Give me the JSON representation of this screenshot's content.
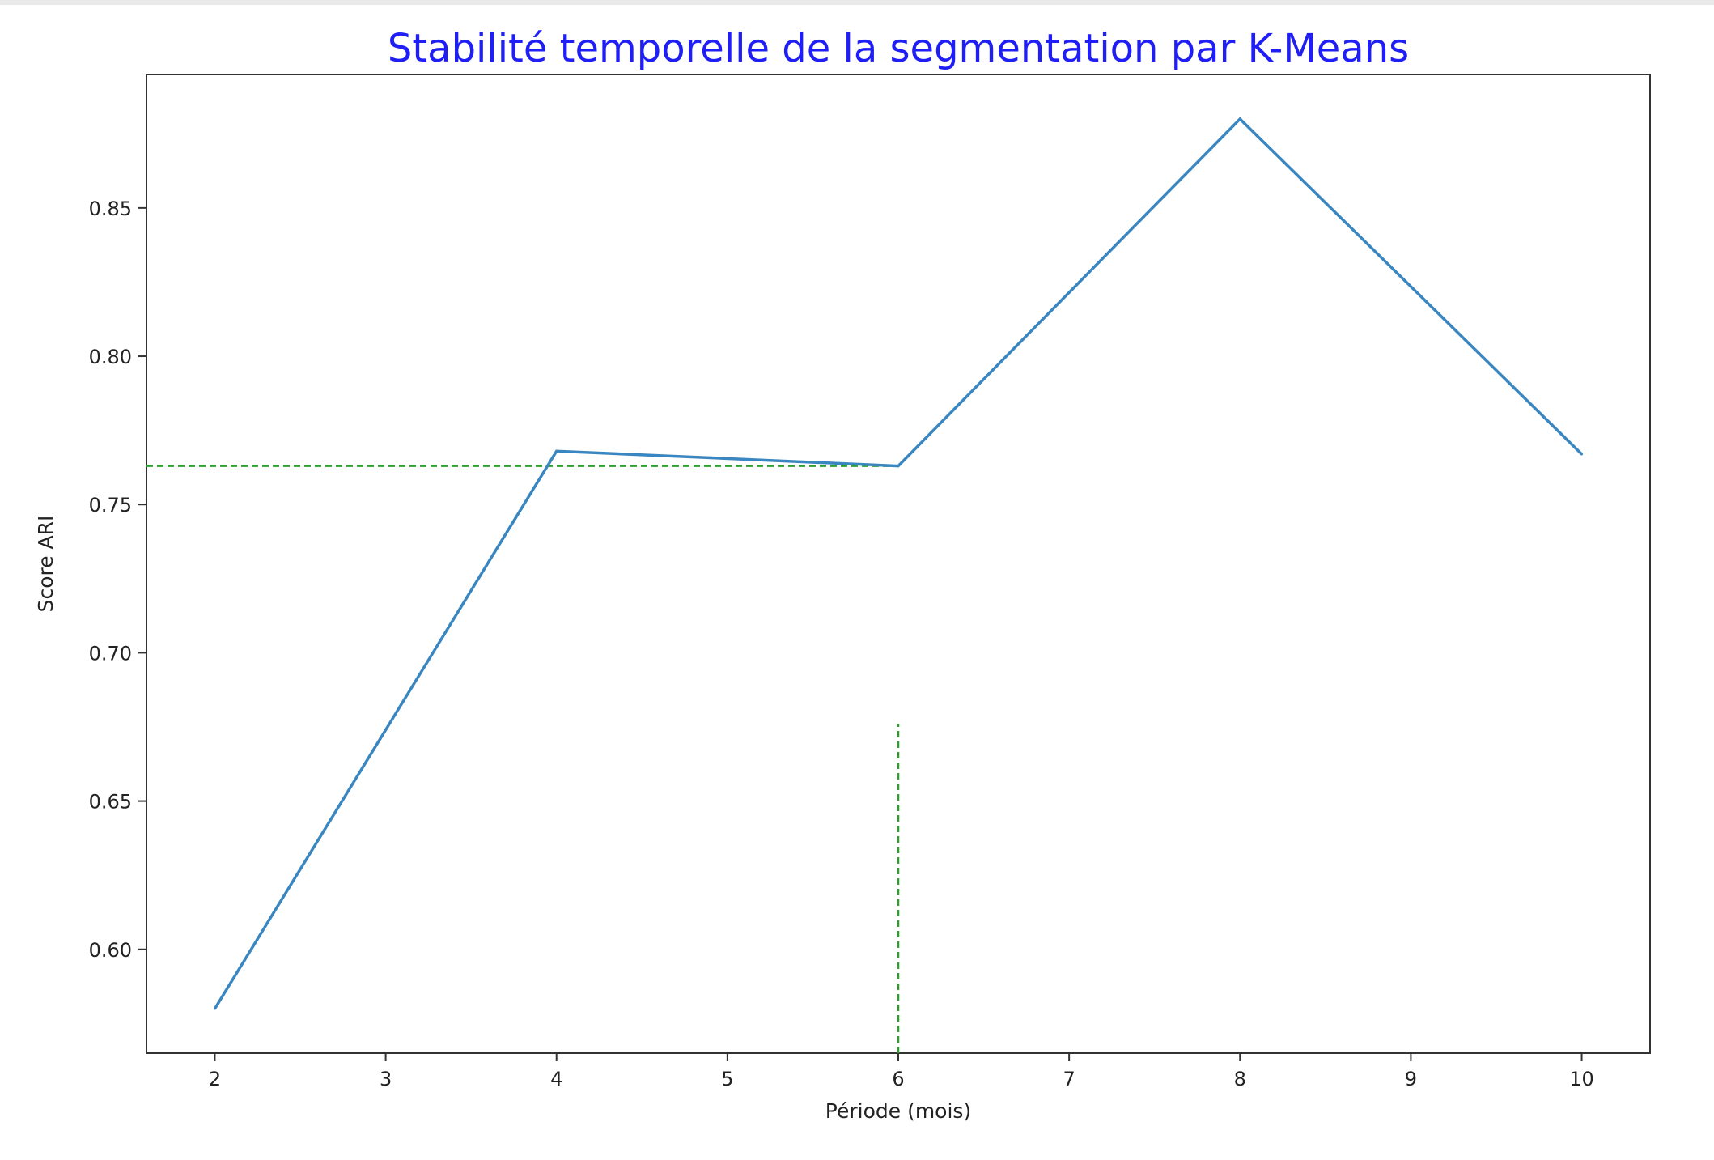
{
  "chart_data": {
    "type": "line",
    "title": "Stabilité temporelle de la segmentation par K-Means",
    "xlabel": "Période (mois)",
    "ylabel": "Score ARI",
    "x_ticks": [
      2,
      3,
      4,
      5,
      6,
      7,
      8,
      9,
      10
    ],
    "y_ticks": [
      "0.60",
      "0.65",
      "0.70",
      "0.75",
      "0.80",
      "0.85"
    ],
    "xlim": [
      1.6,
      10.4
    ],
    "ylim": [
      0.565,
      0.895
    ],
    "grid": false,
    "series": [
      {
        "x": [
          2,
          4,
          6,
          8,
          10
        ],
        "y": [
          0.58,
          0.768,
          0.763,
          0.88,
          0.767
        ],
        "color": "#3a86c0"
      }
    ],
    "reference_lines": {
      "color": "#2ca02c",
      "style": "dashed",
      "horizontal": {
        "y": 0.763,
        "x_from": 1.6,
        "x_to": 6
      },
      "vertical": {
        "x": 6,
        "y_from": 0.565,
        "y_to": 0.676
      }
    }
  }
}
